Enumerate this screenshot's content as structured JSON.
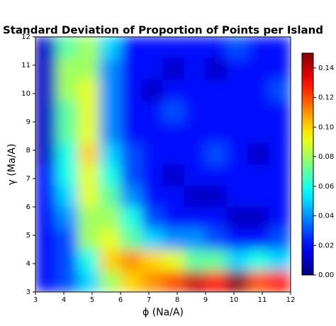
{
  "chart_data": {
    "type": "heatmap",
    "title": "Standard Deviation of Proportion of Points per Island",
    "xlabel": "ϕ  (Na/A)",
    "ylabel": "γ  (Ma/A)",
    "colormap": "jet",
    "x": [
      3.375,
      4.125,
      4.875,
      5.625,
      6.375,
      7.125,
      7.875,
      8.625,
      9.375,
      10.125,
      10.875,
      11.625
    ],
    "y": [
      3.375,
      4.125,
      4.875,
      5.625,
      6.375,
      7.125,
      7.875,
      8.625,
      9.375,
      10.125,
      10.875,
      11.625
    ],
    "z": [
      [
        0.02,
        0.03,
        0.05,
        0.08,
        0.1,
        0.11,
        0.12,
        0.14,
        0.13,
        0.15,
        0.12,
        0.13
      ],
      [
        0.02,
        0.03,
        0.06,
        0.1,
        0.11,
        0.1,
        0.09,
        0.07,
        0.07,
        0.05,
        0.06,
        0.05
      ],
      [
        0.02,
        0.03,
        0.08,
        0.09,
        0.07,
        0.05,
        0.04,
        0.04,
        0.03,
        0.02,
        0.02,
        0.03
      ],
      [
        0.02,
        0.04,
        0.08,
        0.08,
        0.06,
        0.03,
        0.02,
        0.02,
        0.02,
        0.01,
        0.01,
        0.02
      ],
      [
        0.02,
        0.05,
        0.09,
        0.07,
        0.04,
        0.02,
        0.02,
        0.01,
        0.01,
        0.02,
        0.02,
        0.02
      ],
      [
        0.02,
        0.06,
        0.09,
        0.06,
        0.03,
        0.02,
        0.01,
        0.02,
        0.02,
        0.02,
        0.02,
        0.02
      ],
      [
        0.01,
        0.06,
        0.1,
        0.05,
        0.03,
        0.02,
        0.02,
        0.02,
        0.03,
        0.02,
        0.01,
        0.02
      ],
      [
        0.01,
        0.07,
        0.09,
        0.04,
        0.02,
        0.02,
        0.02,
        0.02,
        0.02,
        0.02,
        0.02,
        0.02
      ],
      [
        0.01,
        0.07,
        0.09,
        0.04,
        0.02,
        0.02,
        0.03,
        0.02,
        0.02,
        0.02,
        0.02,
        0.02
      ],
      [
        0.01,
        0.08,
        0.09,
        0.04,
        0.02,
        0.01,
        0.02,
        0.02,
        0.02,
        0.02,
        0.02,
        0.03
      ],
      [
        0.01,
        0.08,
        0.08,
        0.04,
        0.02,
        0.02,
        0.01,
        0.02,
        0.01,
        0.02,
        0.02,
        0.02
      ],
      [
        0.01,
        0.07,
        0.08,
        0.05,
        0.02,
        0.02,
        0.02,
        0.02,
        0.02,
        0.03,
        0.02,
        0.02
      ]
    ],
    "xlim": [
      3,
      12
    ],
    "ylim": [
      3,
      12
    ],
    "xticks": [
      3,
      4,
      5,
      6,
      7,
      8,
      9,
      10,
      11,
      12
    ],
    "yticks": [
      3,
      4,
      5,
      6,
      7,
      8,
      9,
      10,
      11,
      12
    ],
    "clim": [
      0,
      0.15
    ],
    "cticks": [
      {
        "value": 0,
        "label": "0.00"
      },
      {
        "value": 0.02,
        "label": "0.02"
      },
      {
        "value": 0.04,
        "label": "0.04"
      },
      {
        "value": 0.06,
        "label": "0.06"
      },
      {
        "value": 0.08,
        "label": "0.08"
      },
      {
        "value": 0.1,
        "label": "0.10"
      },
      {
        "value": 0.12,
        "label": "0.12"
      },
      {
        "value": 0.14,
        "label": "0.14"
      }
    ]
  }
}
